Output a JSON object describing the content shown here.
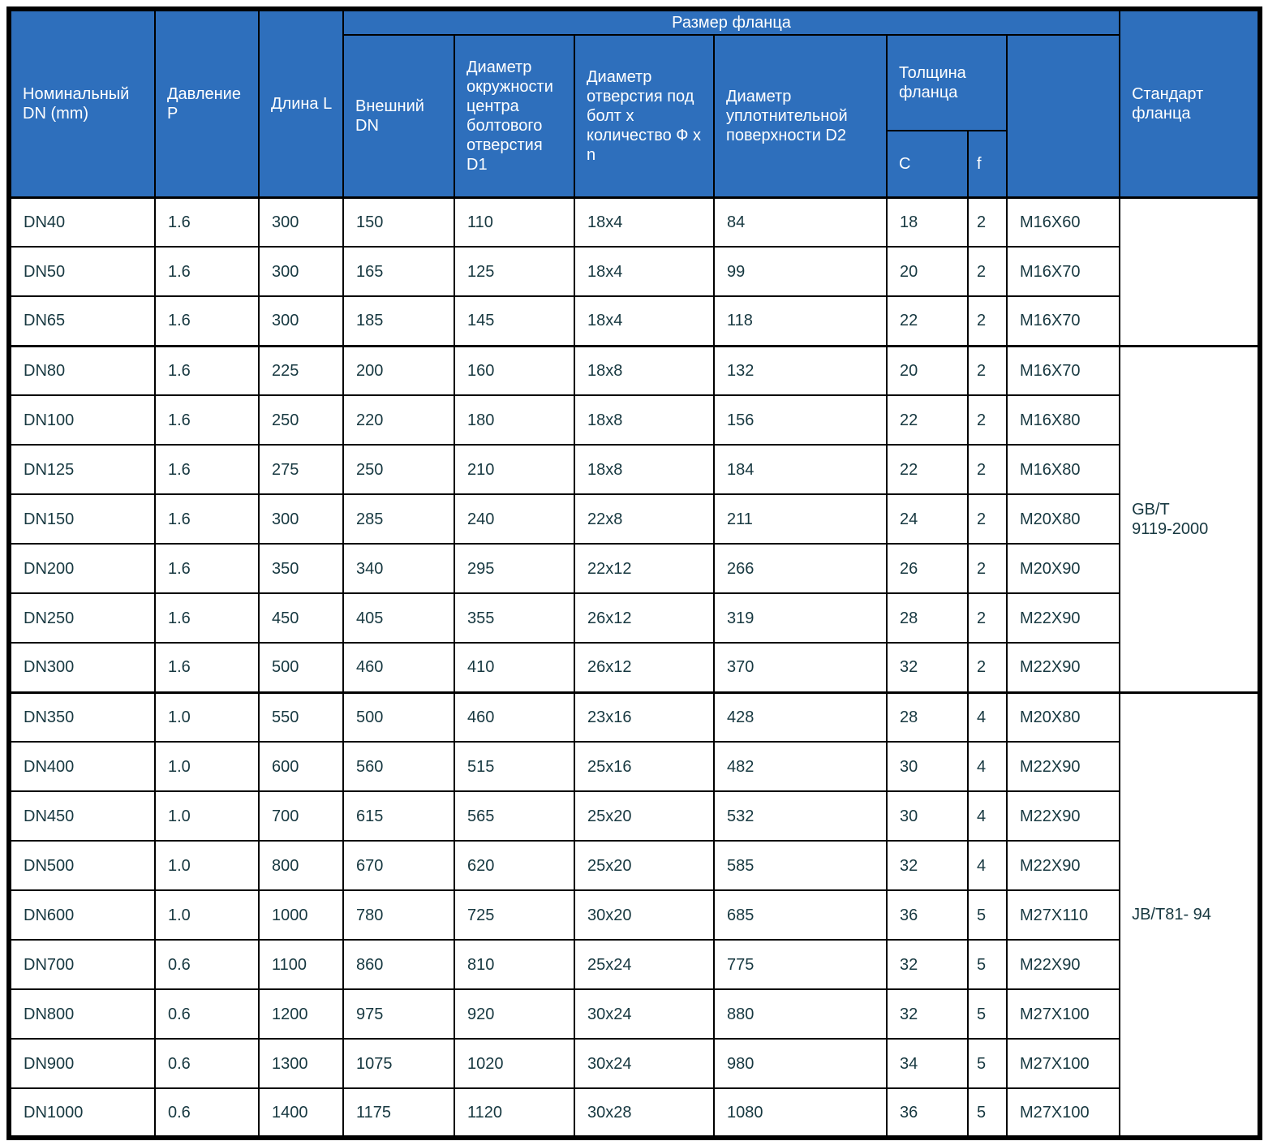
{
  "colors": {
    "header_bg": "#2e6fbc",
    "header_text": "#ffffff",
    "body_text": "#173840",
    "border": "#000000",
    "background": "#ffffff"
  },
  "table": {
    "header": {
      "nominal_dn": "Номинальный DN (mm)",
      "pressure": "Давление P",
      "length": "Длина L",
      "flange_size_group": "Размер фланца",
      "outer_dn": "Внешний DN",
      "bolt_circle_d1": "Диаметр окружности центра болтового отверстия D1",
      "bolt_hole": "Диаметр отверстия под болт х количество Ф х n",
      "sealing_d2": "Диаметр уплотнительной поверхности D2",
      "thickness_group": "Толщина фланца",
      "thickness_c": "C",
      "thickness_f": "f",
      "bolt_spec": "",
      "standard": "Стандарт фланца"
    },
    "column_keys": [
      "nominal-dn",
      "pressure-p",
      "length-l",
      "outer-dn",
      "bolt-circle-d1",
      "bolt-hole-phi-n",
      "sealing-d2",
      "thickness-c",
      "thickness-f",
      "bolt-spec"
    ],
    "groups": [
      {
        "standard": "",
        "rows": [
          [
            "DN40",
            "1.6",
            "300",
            "150",
            "110",
            "18x4",
            "84",
            "18",
            "2",
            "M16X60"
          ],
          [
            "DN50",
            "1.6",
            "300",
            "165",
            "125",
            "18x4",
            "99",
            "20",
            "2",
            "M16X70"
          ],
          [
            "DN65",
            "1.6",
            "300",
            "185",
            "145",
            "18x4",
            "118",
            "22",
            "2",
            "M16X70"
          ]
        ]
      },
      {
        "standard": "GB/T\n9119-2000",
        "rows": [
          [
            "DN80",
            "1.6",
            "225",
            "200",
            "160",
            "18x8",
            "132",
            "20",
            "2",
            "M16X70"
          ],
          [
            "DN100",
            "1.6",
            "250",
            "220",
            "180",
            "18x8",
            "156",
            "22",
            "2",
            "M16X80"
          ],
          [
            "DN125",
            "1.6",
            "275",
            "250",
            "210",
            "18x8",
            "184",
            "22",
            "2",
            "M16X80"
          ],
          [
            "DN150",
            "1.6",
            "300",
            "285",
            "240",
            "22x8",
            "211",
            "24",
            "2",
            "M20X80"
          ],
          [
            "DN200",
            "1.6",
            "350",
            "340",
            "295",
            "22x12",
            "266",
            "26",
            "2",
            "M20X90"
          ],
          [
            "DN250",
            "1.6",
            "450",
            "405",
            "355",
            "26x12",
            "319",
            "28",
            "2",
            "M22X90"
          ],
          [
            "DN300",
            "1.6",
            "500",
            "460",
            "410",
            "26x12",
            "370",
            "32",
            "2",
            "M22X90"
          ]
        ]
      },
      {
        "standard": "JB/T81- 94",
        "rows": [
          [
            "DN350",
            "1.0",
            "550",
            "500",
            "460",
            "23x16",
            "428",
            "28",
            "4",
            "M20X80"
          ],
          [
            "DN400",
            "1.0",
            "600",
            "560",
            "515",
            "25x16",
            "482",
            "30",
            "4",
            "M22X90"
          ],
          [
            "DN450",
            "1.0",
            "700",
            "615",
            "565",
            "25x20",
            "532",
            "30",
            "4",
            "M22X90"
          ],
          [
            "DN500",
            "1.0",
            "800",
            "670",
            "620",
            "25x20",
            "585",
            "32",
            "4",
            "M22X90"
          ],
          [
            "DN600",
            "1.0",
            "1000",
            "780",
            "725",
            "30x20",
            "685",
            "36",
            "5",
            "M27X110"
          ],
          [
            "DN700",
            "0.6",
            "1100",
            "860",
            "810",
            "25x24",
            "775",
            "32",
            "5",
            "M22X90"
          ],
          [
            "DN800",
            "0.6",
            "1200",
            "975",
            "920",
            "30x24",
            "880",
            "32",
            "5",
            "M27X100"
          ],
          [
            "DN900",
            "0.6",
            "1300",
            "1075",
            "1020",
            "30x24",
            "980",
            "34",
            "5",
            "M27X100"
          ],
          [
            "DN1000",
            "0.6",
            "1400",
            "1175",
            "1120",
            "30x28",
            "1080",
            "36",
            "5",
            "M27X100"
          ]
        ]
      }
    ]
  }
}
